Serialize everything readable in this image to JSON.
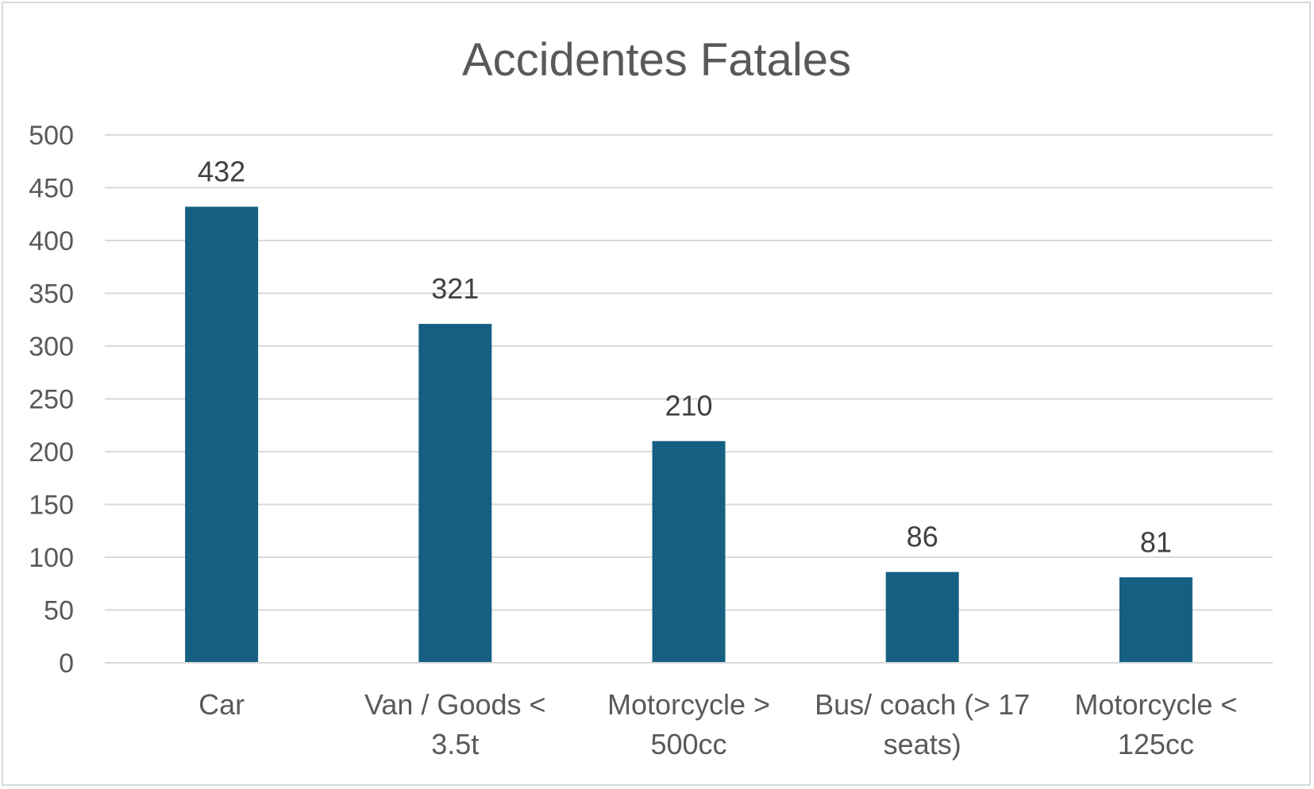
{
  "chart_data": {
    "type": "bar",
    "title": "Accidentes Fatales",
    "xlabel": "",
    "ylabel": "",
    "categories": [
      [
        "Car"
      ],
      [
        "Van / Goods <",
        "3.5t"
      ],
      [
        "Motorcycle >",
        "500cc"
      ],
      [
        "Bus/ coach (> 17",
        "seats)"
      ],
      [
        "Motorcycle <",
        "125cc"
      ]
    ],
    "values": [
      432,
      321,
      210,
      86,
      81
    ],
    "ylim": [
      0,
      500
    ],
    "yticks": [
      0,
      50,
      100,
      150,
      200,
      250,
      300,
      350,
      400,
      450,
      500
    ],
    "grid": true,
    "legend": "none",
    "data_labels": true,
    "bar_color": "#156082"
  }
}
